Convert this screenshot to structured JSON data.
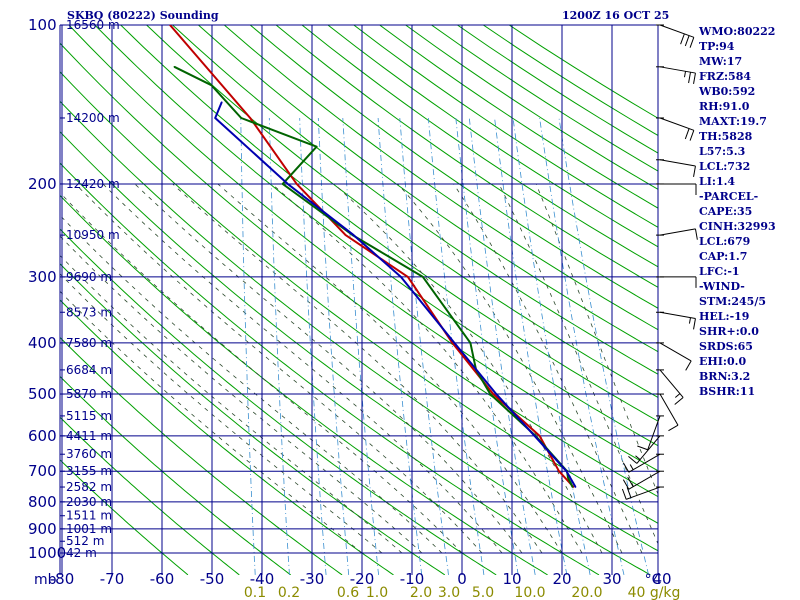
{
  "header": {
    "title": "SKBQ (80222) Sounding",
    "time": "1200Z 16 OCT 25"
  },
  "indices": [
    "WMO:80222",
    "TP:94",
    "MW:17",
    "FRZ:584",
    "WB0:592",
    "RH:91.0",
    "MAXT:19.7",
    "TH:5828",
    "L57:5.3",
    "LCL:732",
    "LI:1.4",
    "-PARCEL-",
    "CAPE:35",
    "CINH:32993",
    "LCL:679",
    "CAP:1.7",
    "LFC:-1",
    "-WIND-",
    "STM:245/5",
    "HEL:-19",
    "SHR+:0.0",
    "SRDS:65",
    "EHI:0.0",
    "BRN:3.2",
    "BSHR:11"
  ],
  "colors": {
    "grid": "#00008b",
    "dry_adiabat": "#00a000",
    "moist_adiabat": "#2e4a2e",
    "mixing_ratio": "#3a8fd0",
    "temperature": "#c00000",
    "dewpoint": "#006400",
    "parcel": "#0000b0",
    "wind": "#000000"
  },
  "chart_data": {
    "type": "skew-t",
    "title": "SKBQ (80222) Sounding",
    "xlabel": "°C",
    "ylabel": "mb",
    "x_range": [
      -80,
      40
    ],
    "y_range": [
      100,
      1000
    ],
    "grid": true,
    "pressure_unit": "mb",
    "pressure_levels": [
      100,
      200,
      300,
      400,
      500,
      600,
      700,
      800,
      900,
      1000
    ],
    "temperature_ticks": [
      -80,
      -70,
      -60,
      -50,
      -40,
      -30,
      -20,
      -10,
      0,
      10,
      20,
      30,
      40
    ],
    "mixing_ratio_ticks": [
      "0.1",
      "0.2",
      "0.6",
      "1.0",
      "2.0",
      "3.0",
      "5.0",
      "10.0",
      "20.0",
      "40 g/kg"
    ],
    "height_labels": [
      {
        "p": 100,
        "label": "16560 m"
      },
      {
        "p": 150,
        "label": "14200 m"
      },
      {
        "p": 200,
        "label": "12420 m"
      },
      {
        "p": 250,
        "label": "10950 m"
      },
      {
        "p": 300,
        "label": "9690 m"
      },
      {
        "p": 350,
        "label": "8573 m"
      },
      {
        "p": 400,
        "label": "7580 m"
      },
      {
        "p": 450,
        "label": "6684 m"
      },
      {
        "p": 500,
        "label": "5870 m"
      },
      {
        "p": 550,
        "label": "5115 m"
      },
      {
        "p": 600,
        "label": "4411 m"
      },
      {
        "p": 650,
        "label": "3760 m"
      },
      {
        "p": 700,
        "label": "3155 m"
      },
      {
        "p": 750,
        "label": "2582 m"
      },
      {
        "p": 800,
        "label": "2030 m"
      },
      {
        "p": 850,
        "label": "1511 m"
      },
      {
        "p": 900,
        "label": "1001 m"
      },
      {
        "p": 950,
        "label": "512 m"
      },
      {
        "p": 1000,
        "label": "42 m"
      }
    ],
    "series": [
      {
        "name": "Temperature",
        "x_kind": "observed",
        "points": [
          [
            750,
            20.2
          ],
          [
            700,
            16.8
          ],
          [
            600,
            11.8
          ],
          [
            500,
            1.2
          ],
          [
            400,
            -8.6
          ],
          [
            300,
            -19.6
          ],
          [
            250,
            -33.4
          ],
          [
            200,
            -44.8
          ],
          [
            150,
            -56.2
          ],
          [
            100,
            -75.2
          ]
        ]
      },
      {
        "name": "Dewpoint",
        "x_kind": "observed",
        "points": [
          [
            750,
            20.0
          ],
          [
            720,
            18.8
          ],
          [
            700,
            18.4
          ],
          [
            600,
            11.0
          ],
          [
            500,
            0.6
          ],
          [
            450,
            -3.0
          ],
          [
            400,
            -5.0
          ],
          [
            300,
            -16.6
          ],
          [
            250,
            -32.0
          ],
          [
            230,
            -37.8
          ],
          [
            200,
            -47.6
          ],
          [
            170,
            -42.0
          ],
          [
            150,
            -58.0
          ],
          [
            130,
            -65.0
          ],
          [
            120,
            -73.0
          ]
        ]
      },
      {
        "name": "Parcel",
        "x_kind": "observed",
        "points": [
          [
            750,
            20.6
          ],
          [
            700,
            18.3
          ],
          [
            600,
            10.8
          ],
          [
            500,
            1.8
          ],
          [
            400,
            -8.2
          ],
          [
            300,
            -21.0
          ],
          [
            250,
            -31.8
          ],
          [
            200,
            -46.6
          ],
          [
            150,
            -63.2
          ],
          [
            140,
            -62.4
          ]
        ]
      }
    ],
    "winds": [
      {
        "p": 100,
        "dir": 110,
        "spd": 30
      },
      {
        "p": 120,
        "dir": 100,
        "spd": 25
      },
      {
        "p": 150,
        "dir": 110,
        "spd": 20
      },
      {
        "p": 180,
        "dir": 100,
        "spd": 10
      },
      {
        "p": 200,
        "dir": 90,
        "spd": 10
      },
      {
        "p": 250,
        "dir": 80,
        "spd": 10
      },
      {
        "p": 300,
        "dir": 90,
        "spd": 10
      },
      {
        "p": 350,
        "dir": 100,
        "spd": 15
      },
      {
        "p": 400,
        "dir": 120,
        "spd": 10
      },
      {
        "p": 450,
        "dir": 140,
        "spd": 15
      },
      {
        "p": 500,
        "dir": 150,
        "spd": 10
      },
      {
        "p": 550,
        "dir": 200,
        "spd": 10
      },
      {
        "p": 600,
        "dir": 220,
        "spd": 15
      },
      {
        "p": 650,
        "dir": 240,
        "spd": 15
      },
      {
        "p": 700,
        "dir": 240,
        "spd": 20
      },
      {
        "p": 750,
        "dir": 250,
        "spd": 20
      }
    ]
  }
}
